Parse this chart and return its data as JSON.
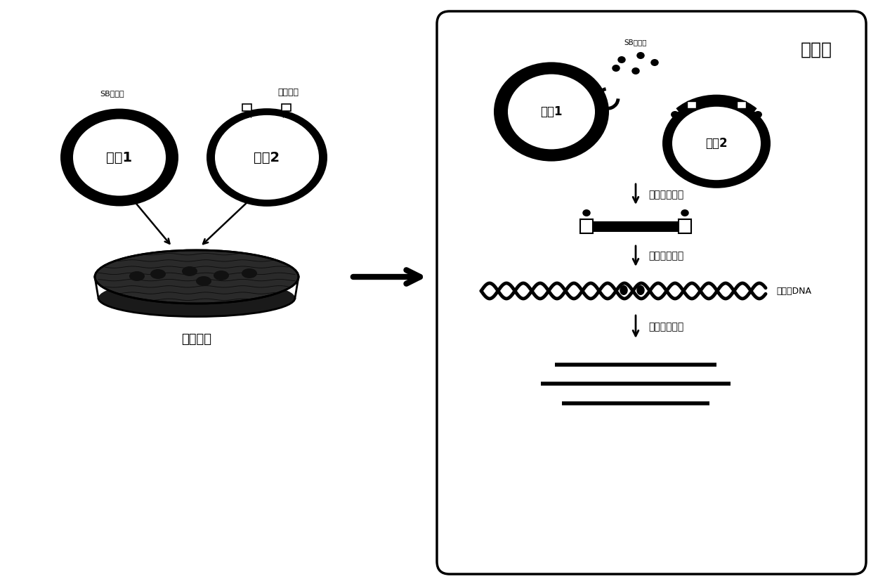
{
  "bg_color": "#ffffff",
  "left_panel": {
    "vector1_label": "载体1",
    "vector1_sublabel": "SB转座酶",
    "vector2_label": "载体2",
    "vector2_sublabel": "目的基因",
    "itr_left": "ITR",
    "itr_right": "ITR",
    "dish_label": "转染细胞"
  },
  "right_panel": {
    "title": "细胞内",
    "vector1_label": "载体1",
    "vector2_label": "载体2",
    "sb_label": "SB转座酶",
    "step1_label": "剪切目的基因",
    "step2_label": "整合目的基因",
    "step3_label": "表达目的基因",
    "genomic_label": "基因组DNA"
  }
}
